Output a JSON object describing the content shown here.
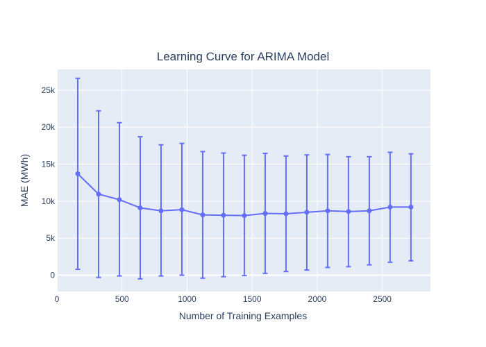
{
  "chart_data": {
    "type": "line",
    "title": "Learning Curve for ARIMA Model",
    "xlabel": "Number of Training Examples",
    "ylabel": "MAE (MWh)",
    "xlim": [
      0,
      2870
    ],
    "ylim": [
      -2200,
      27800
    ],
    "x_ticks": [
      0,
      500,
      1000,
      1500,
      2000,
      2500
    ],
    "x_tick_labels": [
      "0",
      "500",
      "1000",
      "1500",
      "2000",
      "2500"
    ],
    "y_ticks": [
      0,
      5000,
      10000,
      15000,
      20000,
      25000
    ],
    "y_tick_labels": [
      "0",
      "5k",
      "10k",
      "15k",
      "20k",
      "25k"
    ],
    "grid": true,
    "colors": {
      "series": "#636efa",
      "plot_bg": "#e5ecf6",
      "grid": "#ffffff",
      "text": "#2a3f5f"
    },
    "series": [
      {
        "x": [
          160,
          320,
          480,
          640,
          800,
          960,
          1120,
          1280,
          1440,
          1600,
          1760,
          1920,
          2080,
          2240,
          2400,
          2560,
          2720
        ],
        "y": [
          13700,
          10950,
          10200,
          9100,
          8700,
          8850,
          8150,
          8100,
          8050,
          8350,
          8300,
          8500,
          8700,
          8600,
          8700,
          9200,
          9200
        ],
        "error_upper": [
          26600,
          22200,
          20600,
          18700,
          17600,
          17800,
          16700,
          16500,
          16200,
          16450,
          16100,
          16250,
          16300,
          16000,
          16000,
          16600,
          16400
        ],
        "error_lower": [
          800,
          -300,
          -100,
          -500,
          -100,
          0,
          -400,
          -200,
          -50,
          250,
          500,
          700,
          1050,
          1150,
          1400,
          1750,
          1950
        ]
      }
    ]
  }
}
